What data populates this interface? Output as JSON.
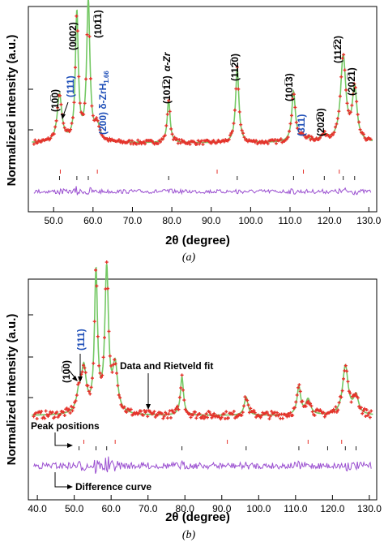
{
  "colors": {
    "data_marker": "#e5322b",
    "fit_line": "#74c864",
    "difference_line": "#9a4fd0",
    "peak_tick_zr": "#222222",
    "peak_tick_hydride": "#e5322b",
    "hydride_label": "#1f4fb8"
  },
  "chart_data": [
    {
      "type": "line",
      "panel_caption": "(a)",
      "ylabel": "Normalized intensity (a.u.)",
      "xlabel": "2θ (degree)",
      "xlim": [
        44,
        132
      ],
      "x_ticks": [
        "50.0",
        "60.0",
        "70.0",
        "80.0",
        "90.0",
        "100.0",
        "110.0",
        "120.0",
        "130.0"
      ],
      "x_tick_values": [
        50,
        60,
        70,
        80,
        90,
        100,
        110,
        120,
        130
      ],
      "background_level": 0.08,
      "peaks": [
        {
          "x": 51.5,
          "height": 0.28,
          "width": 0.7
        },
        {
          "x": 55.9,
          "height": 0.75,
          "width": 0.45
        },
        {
          "x": 58.8,
          "height": 0.82,
          "width": 0.5
        },
        {
          "x": 61.1,
          "height": 0.09,
          "width": 0.8
        },
        {
          "x": 79.2,
          "height": 0.25,
          "width": 0.45
        },
        {
          "x": 96.6,
          "height": 0.44,
          "width": 0.5
        },
        {
          "x": 110.9,
          "height": 0.29,
          "width": 0.55
        },
        {
          "x": 113.4,
          "height": 0.03,
          "width": 1.5
        },
        {
          "x": 118.7,
          "height": 0.035,
          "width": 1.2
        },
        {
          "x": 123.5,
          "height": 0.5,
          "width": 0.8
        },
        {
          "x": 126.4,
          "height": 0.31,
          "width": 0.7
        }
      ],
      "peak_position_ticks_zr": [
        51.5,
        55.9,
        58.8,
        79.2,
        96.6,
        110.9,
        118.7,
        123.5,
        126.4
      ],
      "peak_position_ticks_hydride": [
        51.7,
        61.1,
        91.5,
        113.4,
        122.5
      ],
      "annotations": {
        "p1010": "(10̅0)",
        "p111": "(111)",
        "p0002": "(0002)",
        "p1011": "(101̅1)",
        "p200": "(200) δ-ZrH",
        "p200_sub": "1.66",
        "p1012": "(101̅2)",
        "alpha_zr": "α-Zr",
        "p1120": "(112̅0)",
        "p1013": "(101̅3)",
        "p311": "(311)",
        "p2020": "(202̅0)",
        "p1122": "(112̅2)",
        "p2021": "(202̅1)"
      }
    },
    {
      "type": "line",
      "panel_caption": "(b)",
      "ylabel": "Normalized intensity (a.u.)",
      "xlabel": "2θ (degree)",
      "xlim": [
        38,
        132
      ],
      "x_ticks": [
        "40.0",
        "50.0",
        "60.0",
        "70.0",
        "80.0",
        "90.0",
        "100.0",
        "110.0",
        "120.0",
        "130.0"
      ],
      "x_tick_values": [
        40,
        50,
        60,
        70,
        80,
        90,
        100,
        110,
        120,
        130
      ],
      "background_level": 0.12,
      "peaks": [
        {
          "x": 51.3,
          "height": 0.12,
          "width": 0.8
        },
        {
          "x": 52.6,
          "height": 0.28,
          "width": 0.8
        },
        {
          "x": 55.9,
          "height": 0.9,
          "width": 0.5
        },
        {
          "x": 58.8,
          "height": 0.92,
          "width": 0.6
        },
        {
          "x": 61.1,
          "height": 0.3,
          "width": 0.8
        },
        {
          "x": 79.2,
          "height": 0.25,
          "width": 0.5
        },
        {
          "x": 96.6,
          "height": 0.12,
          "width": 0.6
        },
        {
          "x": 110.9,
          "height": 0.18,
          "width": 0.6
        },
        {
          "x": 113.4,
          "height": 0.1,
          "width": 0.8
        },
        {
          "x": 123.5,
          "height": 0.32,
          "width": 0.9
        },
        {
          "x": 126.4,
          "height": 0.12,
          "width": 0.8
        }
      ],
      "peak_position_ticks_zr": [
        51.3,
        55.9,
        58.8,
        79.2,
        96.6,
        110.9,
        118.7,
        123.5,
        126.4
      ],
      "peak_position_ticks_hydride": [
        52.6,
        61.1,
        91.5,
        113.4,
        122.5
      ],
      "annotations": {
        "p1010": "(10̅0)",
        "p111": "(111)",
        "data_fit": "Data and Rietveld fit",
        "peak_positions": "Peak positions",
        "difference_curve": "Difference curve"
      }
    }
  ]
}
